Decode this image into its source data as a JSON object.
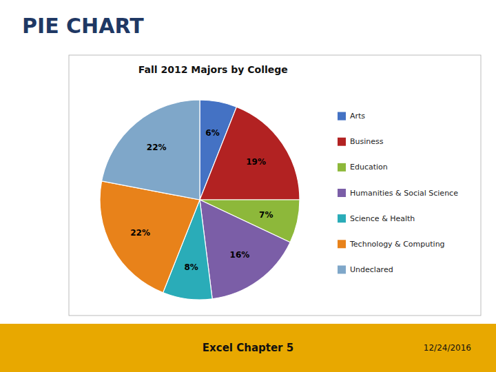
{
  "chart_data": {
    "type": "pie",
    "title": "Fall 2012 Majors by College",
    "annotations": [
      "PIE CHART",
      "Excel Chapter 5",
      "12/24/2016"
    ],
    "categories": [
      "Arts",
      "Business",
      "Education",
      "Humanities & Social Science",
      "Science & Health",
      "Technology & Computing",
      "Undeclared"
    ],
    "values": [
      6,
      19,
      7,
      16,
      8,
      22,
      22
    ],
    "value_labels": [
      "6%",
      "19%",
      "7%",
      "16%",
      "8%",
      "22%",
      "22%"
    ],
    "data_labels": true,
    "colors": [
      "#4472C4",
      "#B22222",
      "#8DB83A",
      "#7B5EA7",
      "#2AACB8",
      "#E8821A",
      "#7FA7C9"
    ]
  }
}
